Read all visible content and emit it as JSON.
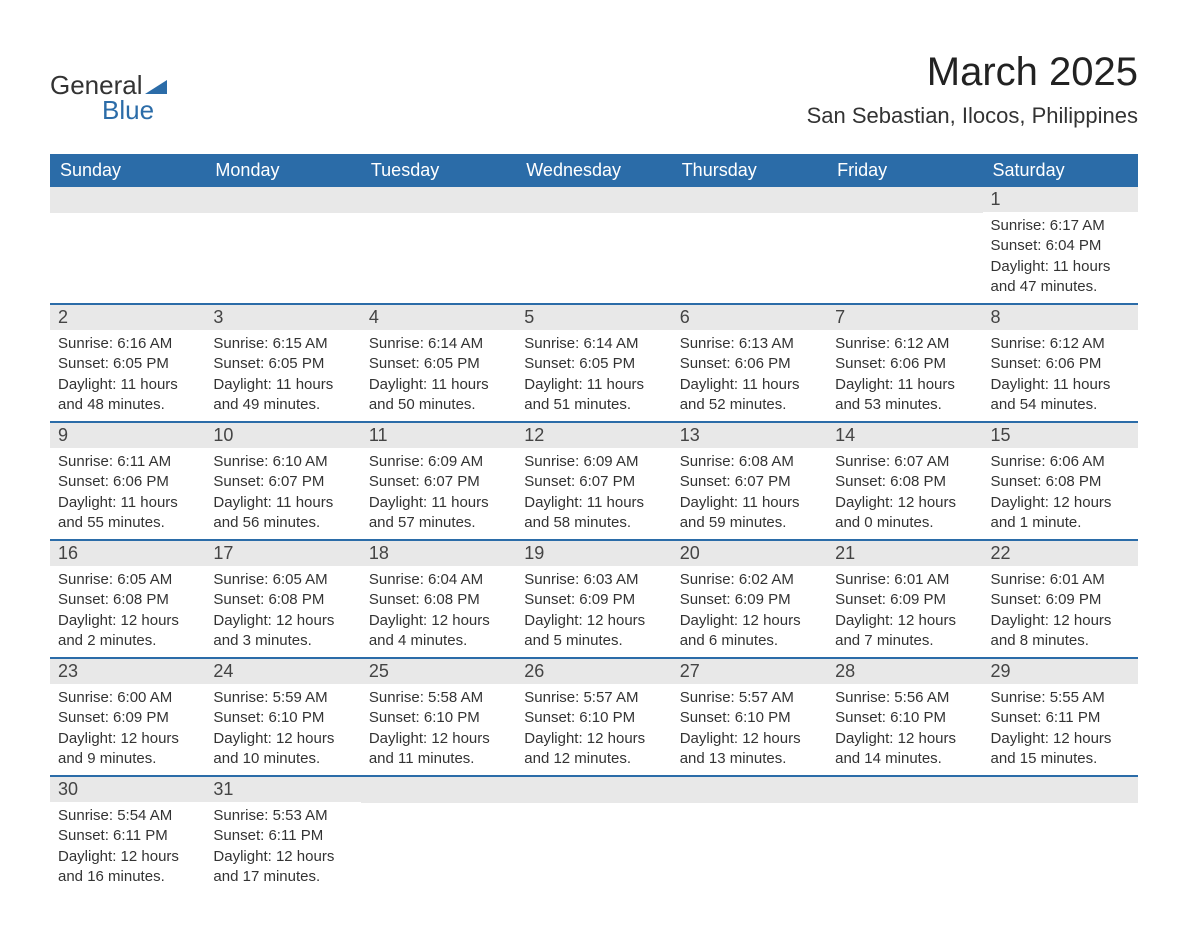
{
  "logo": {
    "text1": "General",
    "text2": "Blue",
    "icon_color": "#2b6ca8"
  },
  "title": "March 2025",
  "location": "San Sebastian, Ilocos, Philippines",
  "colors": {
    "header_bg": "#2b6ca8",
    "header_text": "#ffffff",
    "daynum_bg": "#e8e8e8",
    "border": "#2b6ca8",
    "body_text": "#333333"
  },
  "weekdays": [
    "Sunday",
    "Monday",
    "Tuesday",
    "Wednesday",
    "Thursday",
    "Friday",
    "Saturday"
  ],
  "weeks": [
    [
      null,
      null,
      null,
      null,
      null,
      null,
      {
        "n": "1",
        "sr": "6:17 AM",
        "ss": "6:04 PM",
        "dl": "11 hours and 47 minutes."
      }
    ],
    [
      {
        "n": "2",
        "sr": "6:16 AM",
        "ss": "6:05 PM",
        "dl": "11 hours and 48 minutes."
      },
      {
        "n": "3",
        "sr": "6:15 AM",
        "ss": "6:05 PM",
        "dl": "11 hours and 49 minutes."
      },
      {
        "n": "4",
        "sr": "6:14 AM",
        "ss": "6:05 PM",
        "dl": "11 hours and 50 minutes."
      },
      {
        "n": "5",
        "sr": "6:14 AM",
        "ss": "6:05 PM",
        "dl": "11 hours and 51 minutes."
      },
      {
        "n": "6",
        "sr": "6:13 AM",
        "ss": "6:06 PM",
        "dl": "11 hours and 52 minutes."
      },
      {
        "n": "7",
        "sr": "6:12 AM",
        "ss": "6:06 PM",
        "dl": "11 hours and 53 minutes."
      },
      {
        "n": "8",
        "sr": "6:12 AM",
        "ss": "6:06 PM",
        "dl": "11 hours and 54 minutes."
      }
    ],
    [
      {
        "n": "9",
        "sr": "6:11 AM",
        "ss": "6:06 PM",
        "dl": "11 hours and 55 minutes."
      },
      {
        "n": "10",
        "sr": "6:10 AM",
        "ss": "6:07 PM",
        "dl": "11 hours and 56 minutes."
      },
      {
        "n": "11",
        "sr": "6:09 AM",
        "ss": "6:07 PM",
        "dl": "11 hours and 57 minutes."
      },
      {
        "n": "12",
        "sr": "6:09 AM",
        "ss": "6:07 PM",
        "dl": "11 hours and 58 minutes."
      },
      {
        "n": "13",
        "sr": "6:08 AM",
        "ss": "6:07 PM",
        "dl": "11 hours and 59 minutes."
      },
      {
        "n": "14",
        "sr": "6:07 AM",
        "ss": "6:08 PM",
        "dl": "12 hours and 0 minutes."
      },
      {
        "n": "15",
        "sr": "6:06 AM",
        "ss": "6:08 PM",
        "dl": "12 hours and 1 minute."
      }
    ],
    [
      {
        "n": "16",
        "sr": "6:05 AM",
        "ss": "6:08 PM",
        "dl": "12 hours and 2 minutes."
      },
      {
        "n": "17",
        "sr": "6:05 AM",
        "ss": "6:08 PM",
        "dl": "12 hours and 3 minutes."
      },
      {
        "n": "18",
        "sr": "6:04 AM",
        "ss": "6:08 PM",
        "dl": "12 hours and 4 minutes."
      },
      {
        "n": "19",
        "sr": "6:03 AM",
        "ss": "6:09 PM",
        "dl": "12 hours and 5 minutes."
      },
      {
        "n": "20",
        "sr": "6:02 AM",
        "ss": "6:09 PM",
        "dl": "12 hours and 6 minutes."
      },
      {
        "n": "21",
        "sr": "6:01 AM",
        "ss": "6:09 PM",
        "dl": "12 hours and 7 minutes."
      },
      {
        "n": "22",
        "sr": "6:01 AM",
        "ss": "6:09 PM",
        "dl": "12 hours and 8 minutes."
      }
    ],
    [
      {
        "n": "23",
        "sr": "6:00 AM",
        "ss": "6:09 PM",
        "dl": "12 hours and 9 minutes."
      },
      {
        "n": "24",
        "sr": "5:59 AM",
        "ss": "6:10 PM",
        "dl": "12 hours and 10 minutes."
      },
      {
        "n": "25",
        "sr": "5:58 AM",
        "ss": "6:10 PM",
        "dl": "12 hours and 11 minutes."
      },
      {
        "n": "26",
        "sr": "5:57 AM",
        "ss": "6:10 PM",
        "dl": "12 hours and 12 minutes."
      },
      {
        "n": "27",
        "sr": "5:57 AM",
        "ss": "6:10 PM",
        "dl": "12 hours and 13 minutes."
      },
      {
        "n": "28",
        "sr": "5:56 AM",
        "ss": "6:10 PM",
        "dl": "12 hours and 14 minutes."
      },
      {
        "n": "29",
        "sr": "5:55 AM",
        "ss": "6:11 PM",
        "dl": "12 hours and 15 minutes."
      }
    ],
    [
      {
        "n": "30",
        "sr": "5:54 AM",
        "ss": "6:11 PM",
        "dl": "12 hours and 16 minutes."
      },
      {
        "n": "31",
        "sr": "5:53 AM",
        "ss": "6:11 PM",
        "dl": "12 hours and 17 minutes."
      },
      null,
      null,
      null,
      null,
      null
    ]
  ],
  "labels": {
    "sunrise": "Sunrise: ",
    "sunset": "Sunset: ",
    "daylight": "Daylight: "
  }
}
